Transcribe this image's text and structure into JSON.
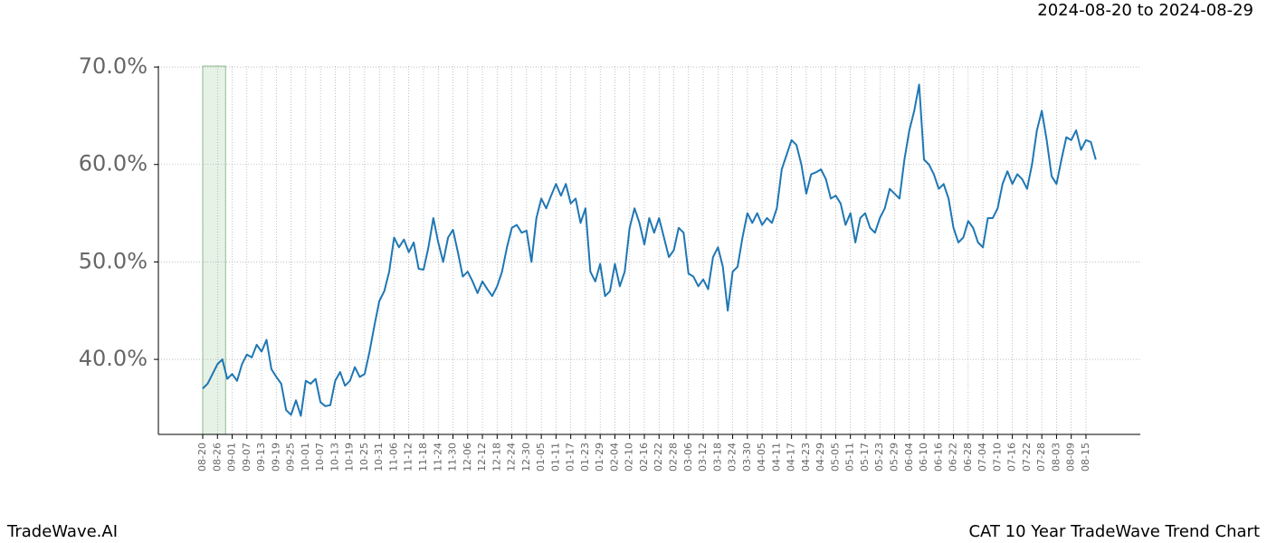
{
  "header": {
    "date_range": "2024-08-20 to 2024-08-29"
  },
  "footer": {
    "brand": "TradeWave.AI",
    "title": "CAT 10 Year TradeWave Trend Chart"
  },
  "chart_data": {
    "type": "line",
    "categories": [
      "08-20",
      null,
      null,
      "08-26",
      null,
      null,
      "09-01",
      null,
      null,
      "09-07",
      null,
      null,
      "09-13",
      null,
      null,
      "09-19",
      null,
      null,
      "09-25",
      null,
      null,
      "10-01",
      null,
      null,
      "10-07",
      null,
      null,
      "10-13",
      null,
      null,
      "10-19",
      null,
      null,
      "10-25",
      null,
      null,
      "10-31",
      null,
      null,
      "11-06",
      null,
      null,
      "11-12",
      null,
      null,
      "11-18",
      null,
      null,
      "11-24",
      null,
      null,
      "11-30",
      null,
      null,
      "12-06",
      null,
      null,
      "12-12",
      null,
      null,
      "12-18",
      null,
      null,
      "12-24",
      null,
      null,
      "12-30",
      null,
      null,
      "01-05",
      null,
      null,
      "01-11",
      null,
      null,
      "01-17",
      null,
      null,
      "01-23",
      null,
      null,
      "01-29",
      null,
      null,
      "02-04",
      null,
      null,
      "02-10",
      null,
      null,
      "02-16",
      null,
      null,
      "02-22",
      null,
      null,
      "02-28",
      null,
      null,
      "03-06",
      null,
      null,
      "03-12",
      null,
      null,
      "03-18",
      null,
      null,
      "03-24",
      null,
      null,
      "03-30",
      null,
      null,
      "04-05",
      null,
      null,
      "04-11",
      null,
      null,
      "04-17",
      null,
      null,
      "04-23",
      null,
      null,
      "04-29",
      null,
      null,
      "05-05",
      null,
      null,
      "05-11",
      null,
      null,
      "05-17",
      null,
      null,
      "05-23",
      null,
      null,
      "05-29",
      null,
      null,
      "06-04",
      null,
      null,
      "06-10",
      null,
      null,
      "06-16",
      null,
      null,
      "06-22",
      null,
      null,
      "06-28",
      null,
      null,
      "07-04",
      null,
      null,
      "07-10",
      null,
      null,
      "07-16",
      null,
      null,
      "07-22",
      null,
      null,
      "07-28",
      null,
      null,
      "08-03",
      null,
      null,
      "08-09",
      null,
      null,
      "08-15",
      null,
      null
    ],
    "series": [
      {
        "color": "#1f77b4",
        "values": [
          37.0,
          37.5,
          38.5,
          39.5,
          40.0,
          38.0,
          38.5,
          37.8,
          39.5,
          40.5,
          40.2,
          41.5,
          40.8,
          42.0,
          39.0,
          38.2,
          37.5,
          34.8,
          34.3,
          35.8,
          34.2,
          37.8,
          37.5,
          38.0,
          35.6,
          35.2,
          35.3,
          37.8,
          38.7,
          37.3,
          37.8,
          39.2,
          38.2,
          38.5,
          40.8,
          43.5,
          46.0,
          47.0,
          49.0,
          52.5,
          51.5,
          52.3,
          51.0,
          52.0,
          49.3,
          49.2,
          51.5,
          54.5,
          52.0,
          50.0,
          52.5,
          53.3,
          51.0,
          48.5,
          49.0,
          48.0,
          46.8,
          48.0,
          47.2,
          46.5,
          47.5,
          49.0,
          51.5,
          53.5,
          53.8,
          53.0,
          53.2,
          50.0,
          54.5,
          56.5,
          55.5,
          56.8,
          58.0,
          56.8,
          58.0,
          56.0,
          56.5,
          54.0,
          55.5,
          49.0,
          48.0,
          49.8,
          46.5,
          47.0,
          49.8,
          47.5,
          49.0,
          53.5,
          55.5,
          54.0,
          51.8,
          54.5,
          53.0,
          54.5,
          52.5,
          50.5,
          51.2,
          53.5,
          53.0,
          48.8,
          48.5,
          47.5,
          48.2,
          47.2,
          50.5,
          51.5,
          49.5,
          45.0,
          49.0,
          49.5,
          52.5,
          55.0,
          54.0,
          55.0,
          53.8,
          54.5,
          54.0,
          55.5,
          59.5,
          61.0,
          62.5,
          62.0,
          60.0,
          57.0,
          59.0,
          59.2,
          59.5,
          58.5,
          56.5,
          56.8,
          56.0,
          53.8,
          55.0,
          52.0,
          54.5,
          55.0,
          53.5,
          53.0,
          54.5,
          55.5,
          57.5,
          57.0,
          56.5,
          60.5,
          63.5,
          65.5,
          68.2,
          60.5,
          60.0,
          59.0,
          57.5,
          58.0,
          56.5,
          53.5,
          52.0,
          52.5,
          54.2,
          53.5,
          52.0,
          51.5,
          54.5,
          54.5,
          55.5,
          58.0,
          59.3,
          58.0,
          59.0,
          58.5,
          57.5,
          60.0,
          63.5,
          65.5,
          62.5,
          58.8,
          58.0,
          60.5,
          62.8,
          62.5,
          63.5,
          61.5,
          62.5,
          62.3,
          60.5
        ]
      }
    ],
    "ylim": [
      32.3,
      70.1
    ],
    "yticks": [
      {
        "value": 40,
        "label": "40.0%"
      },
      {
        "value": 50,
        "label": "50.0%"
      },
      {
        "value": 60,
        "label": "60.0%"
      },
      {
        "value": 70,
        "label": "70.0%"
      }
    ],
    "grid": true,
    "highlight": {
      "from": "08-20",
      "to": "08-26",
      "color": "#e6f2e6",
      "edge": "#8fbf8f"
    }
  }
}
